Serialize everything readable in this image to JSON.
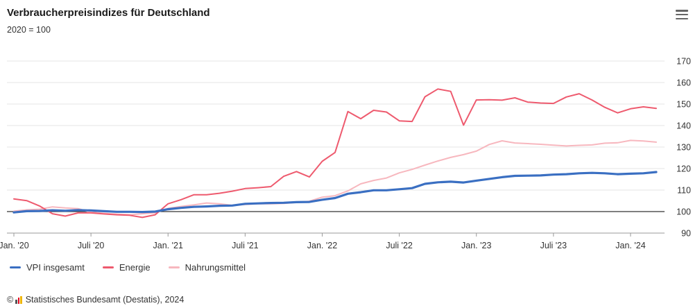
{
  "header": {
    "title": "Verbraucherpreisindizes für Deutschland",
    "subtitle": "2020 = 100",
    "menu_icon": "hamburger-menu-icon"
  },
  "source": {
    "copyright_symbol": "©",
    "text": "Statistisches Bundesamt (Destatis), 2024"
  },
  "colors": {
    "vpi": "#3a6fc2",
    "energie": "#ee5a6e",
    "nahrungsmittel": "#f7b7be",
    "reference_line": "#333333",
    "grid": "#e6e6e6"
  },
  "chart_data": {
    "type": "line",
    "title": "Verbraucherpreisindizes für Deutschland",
    "subtitle": "2020 = 100",
    "x": [
      "2020-01",
      "2020-02",
      "2020-03",
      "2020-04",
      "2020-05",
      "2020-06",
      "2020-07",
      "2020-08",
      "2020-09",
      "2020-10",
      "2020-11",
      "2020-12",
      "2021-01",
      "2021-02",
      "2021-03",
      "2021-04",
      "2021-05",
      "2021-06",
      "2021-07",
      "2021-08",
      "2021-09",
      "2021-10",
      "2021-11",
      "2021-12",
      "2022-01",
      "2022-02",
      "2022-03",
      "2022-04",
      "2022-05",
      "2022-06",
      "2022-07",
      "2022-08",
      "2022-09",
      "2022-10",
      "2022-11",
      "2022-12",
      "2023-01",
      "2023-02",
      "2023-03",
      "2023-04",
      "2023-05",
      "2023-06",
      "2023-07",
      "2023-08",
      "2023-09",
      "2023-10",
      "2023-11",
      "2023-12",
      "2024-01",
      "2024-02",
      "2024-03"
    ],
    "x_tick_labels": [
      "Jan. '20",
      "Juli '20",
      "Jan. '21",
      "Juli '21",
      "Jan. '22",
      "Juli '22",
      "Jan. '23",
      "Juli '23",
      "Jan. '24"
    ],
    "x_tick_months": [
      "2020-01",
      "2020-07",
      "2021-01",
      "2021-07",
      "2022-01",
      "2022-07",
      "2023-01",
      "2023-07",
      "2024-01"
    ],
    "ylim": [
      90,
      170
    ],
    "y_ticks": [
      90,
      100,
      110,
      120,
      130,
      140,
      150,
      160,
      170
    ],
    "y_axis_position": "right",
    "reference_line": 100,
    "grid": true,
    "legend_position": "bottom-left",
    "series": [
      {
        "name": "VPI insgesamt",
        "color_key": "vpi",
        "values": [
          99.6,
          100.2,
          100.3,
          100.6,
          100.4,
          100.7,
          100.5,
          100.2,
          99.9,
          99.9,
          99.8,
          100.0,
          101.1,
          101.7,
          102.2,
          102.4,
          102.7,
          102.8,
          103.6,
          103.8,
          104.0,
          104.1,
          104.4,
          104.5,
          105.5,
          106.3,
          108.3,
          109.0,
          109.9,
          109.9,
          110.4,
          110.9,
          112.9,
          113.6,
          113.9,
          113.5,
          114.4,
          115.2,
          116.0,
          116.6,
          116.7,
          116.8,
          117.2,
          117.4,
          117.8,
          118.0,
          117.8,
          117.4,
          117.6,
          117.8,
          118.4
        ]
      },
      {
        "name": "Energie",
        "color_key": "energie",
        "values": [
          105.9,
          105.1,
          102.6,
          99.0,
          97.9,
          99.4,
          99.4,
          98.9,
          98.5,
          98.3,
          97.3,
          98.5,
          103.6,
          105.5,
          107.8,
          107.8,
          108.5,
          109.5,
          110.7,
          111.1,
          111.6,
          116.4,
          118.6,
          116.1,
          123.4,
          127.5,
          146.5,
          143.2,
          147.1,
          146.3,
          142.2,
          141.9,
          153.4,
          157.0,
          155.9,
          140.2,
          151.9,
          152.0,
          151.8,
          152.9,
          150.9,
          150.5,
          150.3,
          153.3,
          154.8,
          151.9,
          148.5,
          145.9,
          147.8,
          148.7,
          148.0
        ]
      },
      {
        "name": "Nahrungsmittel",
        "color_key": "nahrungsmittel",
        "values": [
          100.2,
          100.8,
          101.1,
          102.2,
          101.7,
          101.4,
          99.7,
          99.2,
          98.8,
          98.5,
          99.0,
          99.4,
          101.5,
          102.4,
          103.1,
          104.0,
          103.6,
          102.9,
          103.3,
          103.6,
          103.6,
          103.8,
          104.3,
          104.8,
          106.7,
          107.4,
          109.6,
          112.9,
          114.5,
          115.6,
          118.0,
          119.6,
          121.6,
          123.5,
          125.2,
          126.5,
          128.1,
          131.2,
          132.9,
          131.9,
          131.6,
          131.3,
          130.9,
          130.5,
          130.8,
          131.0,
          131.8,
          132.0,
          133.1,
          132.8,
          132.3
        ]
      }
    ]
  }
}
